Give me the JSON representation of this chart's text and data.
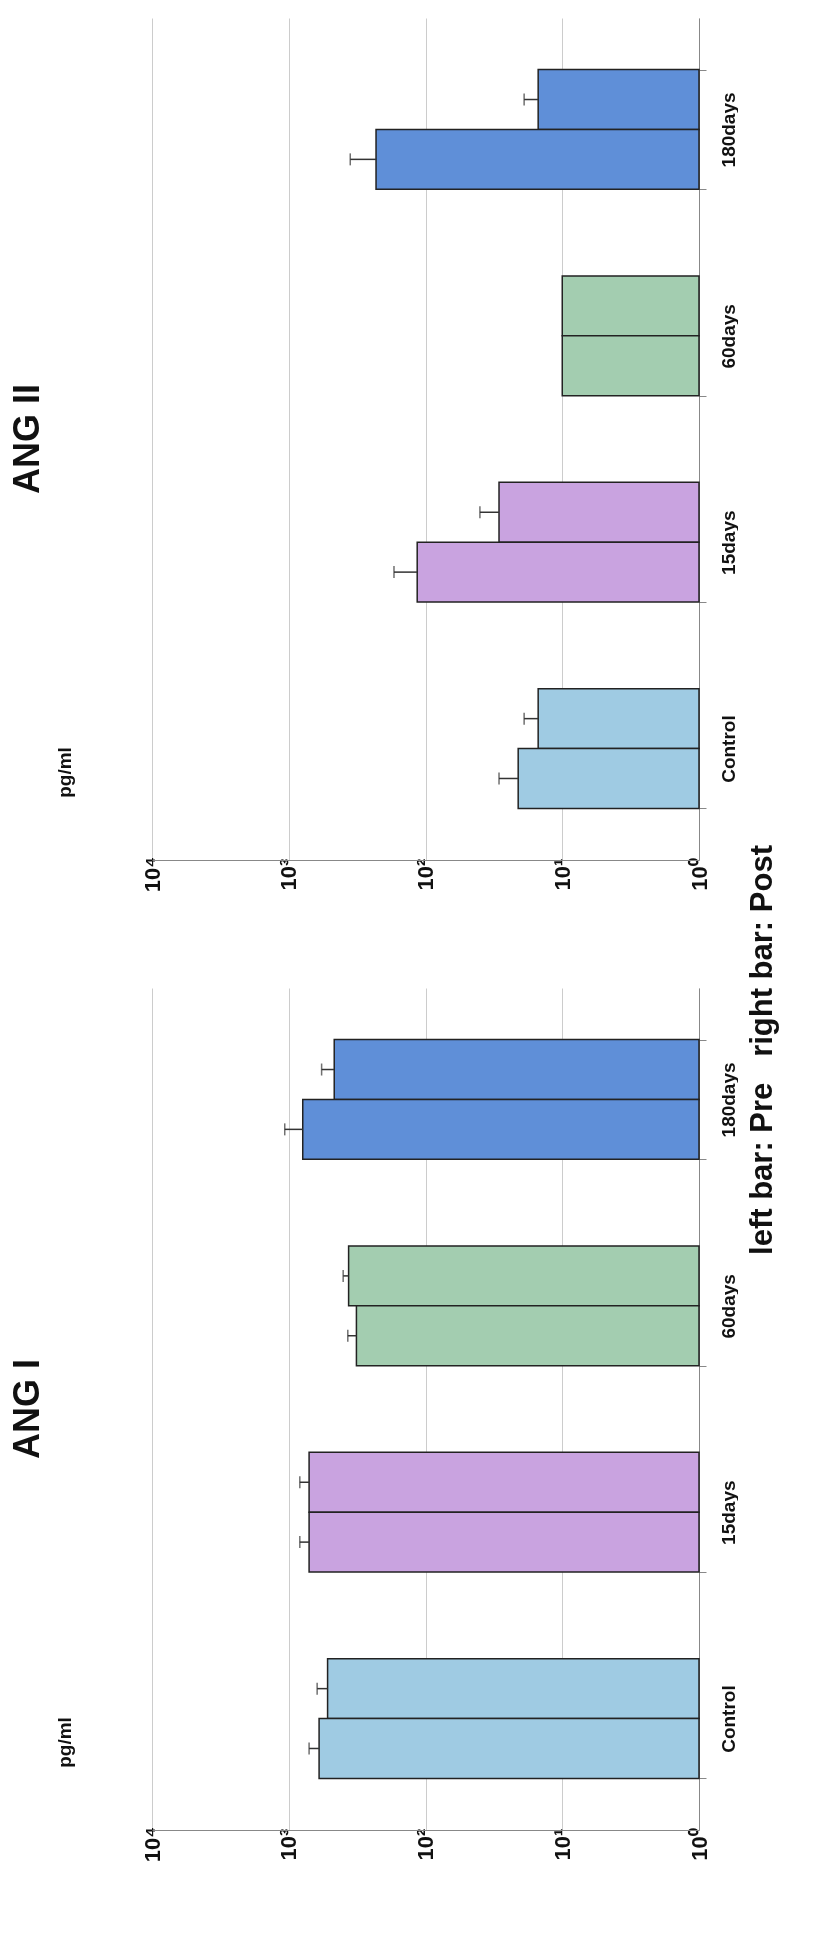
{
  "chart_data": [
    {
      "type": "bar",
      "orientation": "horizontal",
      "title": "ANG II",
      "ylabel": "pg/ml",
      "categories": [
        "180days",
        "60days",
        "15days",
        "Control"
      ],
      "log": "x",
      "xlim": [
        10000,
        1
      ],
      "xticks": [
        {
          "value": 10000,
          "label": "10⁴"
        },
        {
          "value": 1000,
          "label": "10³"
        },
        {
          "value": 100,
          "label": "10²"
        },
        {
          "value": 10,
          "label": "10¹"
        },
        {
          "value": 1,
          "label": "10⁰"
        }
      ],
      "grid": "x",
      "series": [
        {
          "colors": [
            "#5f8fd8",
            "#a3cdb0",
            "#c9a3e0",
            "#9fcbe3"
          ],
          "values": [
            15,
            10,
            29,
            15
          ],
          "errors": [
            [
              15,
              19
            ],
            null,
            [
              29,
              40
            ],
            [
              15,
              19
            ]
          ]
        },
        {
          "colors": [
            "#5f8fd8",
            "#a3cdb0",
            "#c9a3e0",
            "#9fcbe3"
          ],
          "values": [
            230,
            10,
            115,
            21
          ],
          "errors": [
            [
              230,
              355
            ],
            null,
            [
              115,
              170
            ],
            [
              21,
              29
            ]
          ]
        }
      ]
    },
    {
      "type": "bar",
      "orientation": "horizontal",
      "title": "ANG I",
      "ylabel": "pg/ml",
      "categories": [
        "180days",
        "60days",
        "15days",
        "Control"
      ],
      "log": "x",
      "xlim": [
        10000,
        1
      ],
      "xticks": [
        {
          "value": 10000,
          "label": "10⁴"
        },
        {
          "value": 1000,
          "label": "10³"
        },
        {
          "value": 100,
          "label": "10²"
        },
        {
          "value": 10,
          "label": "10¹"
        },
        {
          "value": 1,
          "label": "10⁰"
        }
      ],
      "grid": "x",
      "annotations": [
        "left bar: Pre   right bar: Post"
      ],
      "series": [
        {
          "colors": [
            "#5f8fd8",
            "#a3cdb0",
            "#c9a3e0",
            "#9fcbe3"
          ],
          "values": [
            465,
            365,
            710,
            520
          ],
          "errors": [
            [
              465,
              575
            ],
            [
              365,
              400
            ],
            [
              710,
              830
            ],
            [
              520,
              620
            ]
          ]
        },
        {
          "colors": [
            "#5f8fd8",
            "#a3cdb0",
            "#c9a3e0",
            "#9fcbe3"
          ],
          "values": [
            790,
            320,
            710,
            600
          ],
          "errors": [
            [
              790,
              1070
            ],
            [
              320,
              370
            ],
            [
              710,
              830
            ],
            [
              600,
              710
            ]
          ]
        }
      ]
    }
  ]
}
